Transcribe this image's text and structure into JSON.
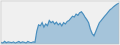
{
  "chart_data": {
    "type": "line",
    "values": [
      30,
      28,
      32,
      29,
      31,
      30,
      29,
      31,
      28,
      30,
      32,
      29,
      31,
      30,
      28,
      32,
      30,
      29,
      31,
      30,
      55,
      70,
      68,
      75,
      65,
      72,
      68,
      80,
      75,
      78,
      72,
      76,
      70,
      74,
      68,
      75,
      72,
      78,
      80,
      85,
      90,
      88,
      95,
      92,
      98,
      100,
      95,
      88,
      82,
      75,
      60,
      50,
      45,
      55,
      65,
      75,
      80,
      85,
      90,
      95,
      100,
      105,
      108,
      112,
      115,
      118,
      120
    ],
    "color": "#4a8fbe",
    "xlim": [
      0,
      66
    ],
    "ylim": [
      26,
      125
    ],
    "tick_labels": false,
    "grid": false
  }
}
